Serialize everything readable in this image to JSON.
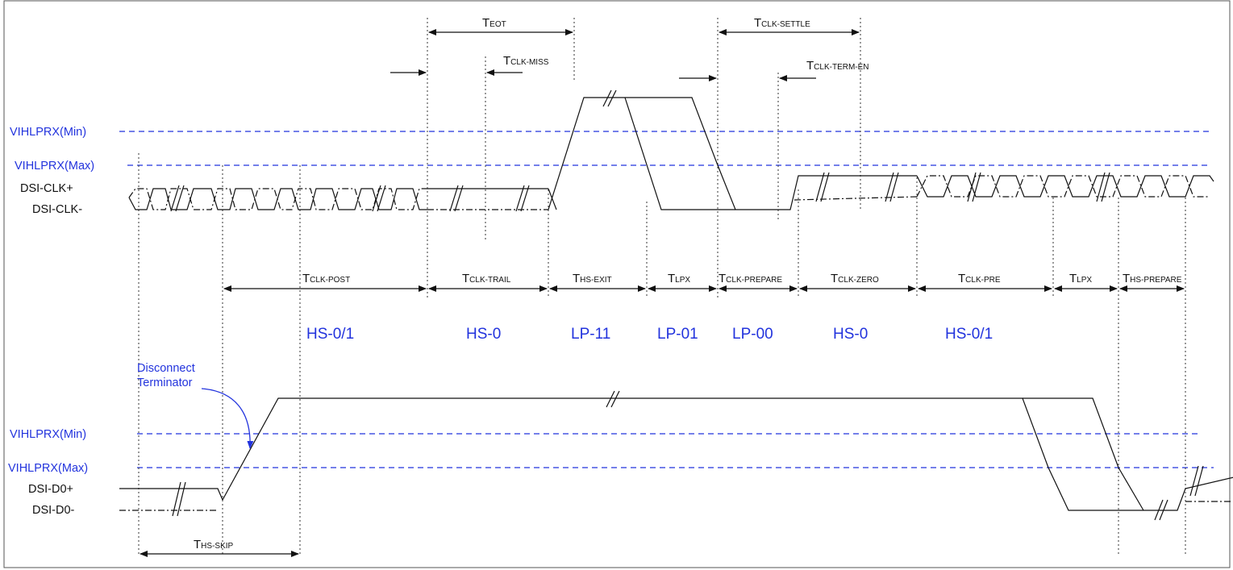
{
  "thresholds": {
    "clk_upper": "VIHLPRX(Min)",
    "clk_lower": "VIHLPRX(Max)",
    "data_upper": "VIHLPRX(Min)",
    "data_lower": "VIHLPRX(Max)"
  },
  "signals": {
    "clk_p": "DSI-CLK+",
    "clk_n": "DSI-CLK-",
    "d0_p": "DSI-D0+",
    "d0_n": "DSI-D0-"
  },
  "top_timings": {
    "eot": {
      "main": "T",
      "sub": "EOT"
    },
    "clk_miss": {
      "main": "T",
      "sub": "CLK-MISS"
    },
    "clk_settle": {
      "main": "T",
      "sub": "CLK-SETTLE"
    },
    "clk_term_en": {
      "main": "T",
      "sub": "CLK-TERM-EN"
    }
  },
  "mid_timings": {
    "clk_post": {
      "main": "T",
      "sub": "CLK-POST"
    },
    "clk_trail": {
      "main": "T",
      "sub": "CLK-TRAIL"
    },
    "hs_exit": {
      "main": "T",
      "sub": "HS-EXIT"
    },
    "lpx1": {
      "main": "T",
      "sub": "LPX"
    },
    "clk_prepare": {
      "main": "T",
      "sub": "CLK-PREPARE"
    },
    "clk_zero": {
      "main": "T",
      "sub": "CLK-ZERO"
    },
    "clk_pre": {
      "main": "T",
      "sub": "CLK-PRE"
    },
    "lpx2": {
      "main": "T",
      "sub": "LPX"
    },
    "hs_prepare": {
      "main": "T",
      "sub": "HS-PREPARE"
    }
  },
  "states": {
    "s1": "HS-0/1",
    "s2": "HS-0",
    "s3": "LP-11",
    "s4": "LP-01",
    "s5": "LP-00",
    "s6": "HS-0",
    "s7": "HS-0/1"
  },
  "annotation": {
    "line1": "Disconnect",
    "line2": "Terminator"
  },
  "bottom_timing": {
    "main": "T",
    "sub": "HS-SKIP"
  },
  "colors": {
    "threshold_line": "#2233dd",
    "signal_line": "#111111",
    "state_text": "#2233dd"
  }
}
